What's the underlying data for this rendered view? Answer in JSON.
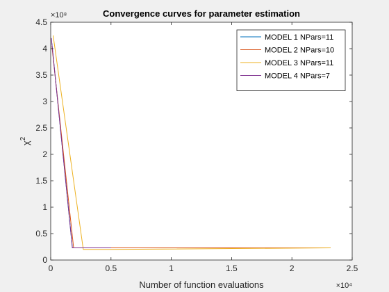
{
  "chart_data": {
    "type": "line",
    "title": "Convergence curves for parameter estimation",
    "xlabel": "Number of function evaluations",
    "ylabel": "χ",
    "ylabel_superscript": "2",
    "x_exponent": "×10⁴",
    "y_exponent": "×10⁸",
    "xlim": [
      0,
      25000
    ],
    "ylim": [
      0,
      450000000
    ],
    "x_ticks": [
      0,
      5000,
      10000,
      15000,
      20000,
      25000
    ],
    "x_tick_labels": [
      "0",
      "0.5",
      "1",
      "1.5",
      "2",
      "2.5"
    ],
    "y_ticks": [
      0,
      50000000,
      100000000,
      150000000,
      200000000,
      250000000,
      300000000,
      350000000,
      400000000,
      450000000
    ],
    "y_tick_labels": [
      "0",
      "0.5",
      "1",
      "1.5",
      "2",
      "2.5",
      "3",
      "3.5",
      "4",
      "4.5"
    ],
    "grid": false,
    "legend_position": "top-right",
    "series": [
      {
        "name": "MODEL 1 NPars=11",
        "color": "#0072BD",
        "x": [
          100,
          1800,
          23200
        ],
        "y": [
          410000000,
          23000000,
          23000000
        ]
      },
      {
        "name": "MODEL 2 NPars=10",
        "color": "#D95319",
        "x": [
          100,
          1900,
          23200
        ],
        "y": [
          405000000,
          23000000,
          23000000
        ]
      },
      {
        "name": "MODEL 3 NPars=11",
        "color": "#EDB120",
        "x": [
          200,
          2700,
          5000,
          23200
        ],
        "y": [
          425000000,
          20000000,
          20000000,
          23000000
        ]
      },
      {
        "name": "MODEL 4 NPars=7",
        "color": "#7E2F8E",
        "x": [
          50,
          1800,
          5000
        ],
        "y": [
          420000000,
          23000000,
          23000000
        ]
      }
    ]
  }
}
